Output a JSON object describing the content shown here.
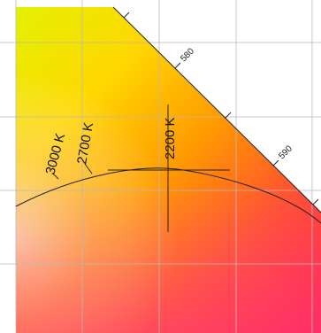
{
  "diagram": {
    "type": "CIE chromaticity diagram detail (spectral locus with Planckian locus)",
    "spectral_locus_ticks": [
      {
        "wavelength_nm": 580,
        "label": "580"
      },
      {
        "wavelength_nm": 590,
        "label": "590"
      }
    ],
    "planckian_locus_labels": [
      {
        "label": "3000 K"
      },
      {
        "label": "2700 K"
      },
      {
        "label": "2200 K"
      }
    ],
    "highlighted_point": {
      "cct_label": "2200 K"
    },
    "grid": true,
    "colors": {
      "yellow_green": "#e0f000",
      "yellow": "#ffe000",
      "orange": "#ff8c00",
      "red": "#ff2040",
      "pink": "#ff80a0",
      "white_point": "#f6d8c8",
      "line": "#222222",
      "grid": "#b9b9b9"
    }
  }
}
